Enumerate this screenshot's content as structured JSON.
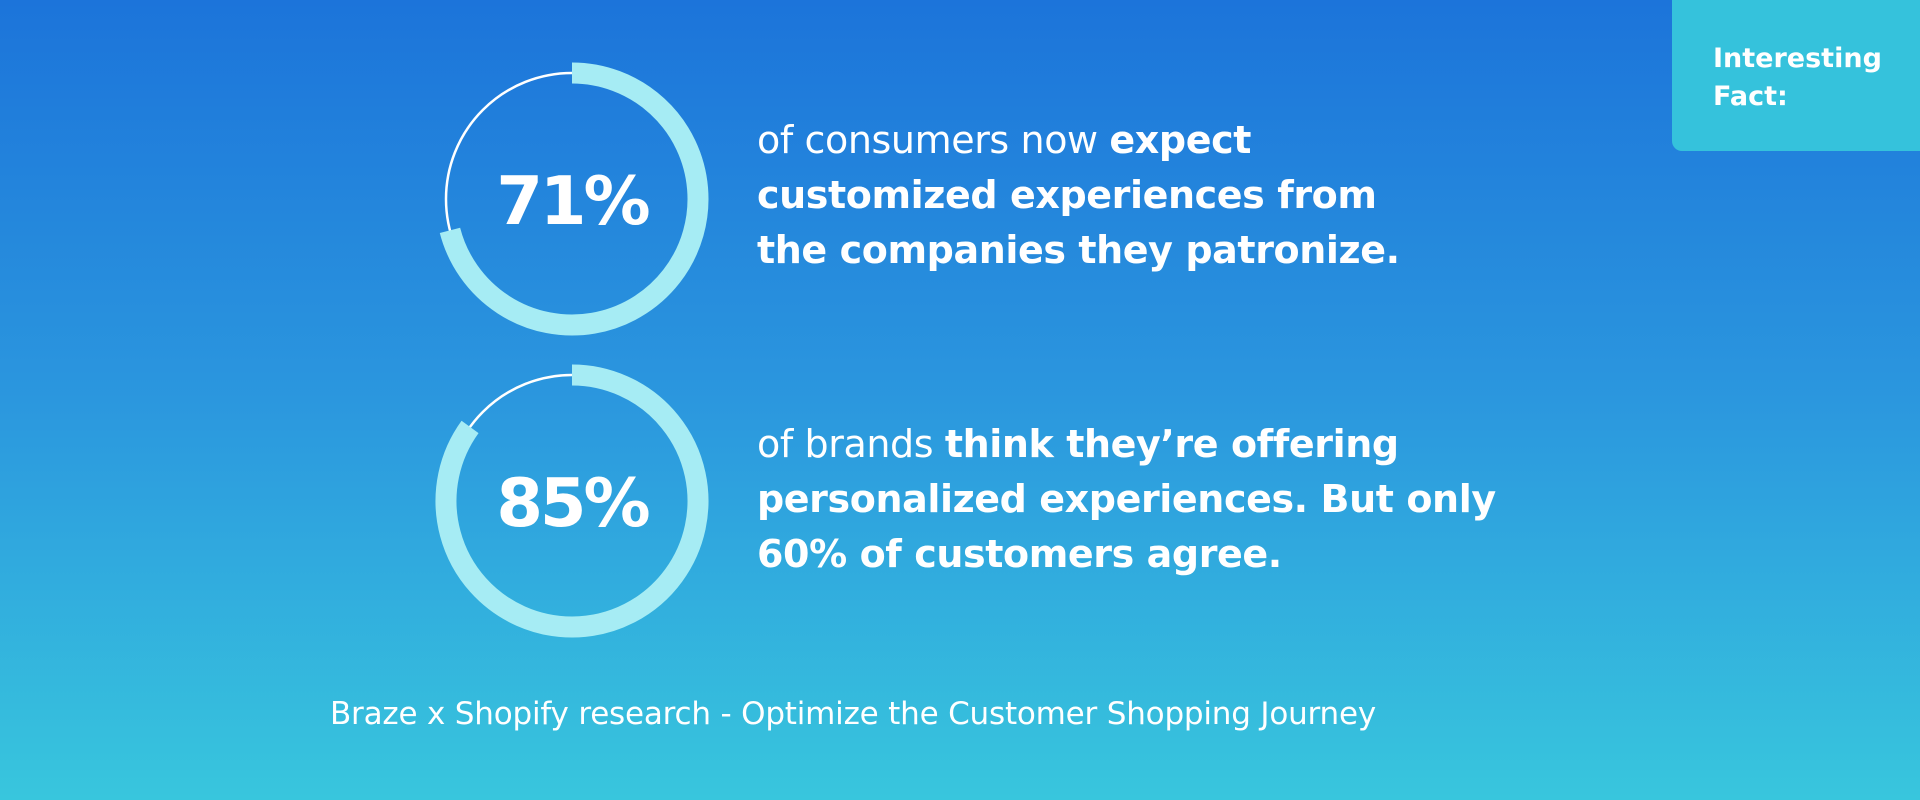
{
  "badge": {
    "line1": "Interesting",
    "line2": "Fact:"
  },
  "chart_data": [
    {
      "type": "pie",
      "title": "",
      "value": 71,
      "max": 100,
      "label": "71%",
      "description": {
        "line1_light": "of consumers now ",
        "line1_bold": "expect",
        "line2": "customized experiences from",
        "line3": "the companies they patronize."
      }
    },
    {
      "type": "pie",
      "title": "",
      "value": 85,
      "max": 100,
      "label": "85%",
      "description": {
        "line1_light": "of brands ",
        "line1_bold": "think they’re offering",
        "line2": "personalized experiences. But only",
        "line3": "60% of customers agree."
      }
    }
  ],
  "caption": "Braze x Shopify research - Optimize the Customer Shopping Journey",
  "colors": {
    "background_top": "#1c74da",
    "background_bottom": "#38c6dd",
    "ring_progress": "#a6ecf4",
    "badge": "#35c2dc"
  }
}
